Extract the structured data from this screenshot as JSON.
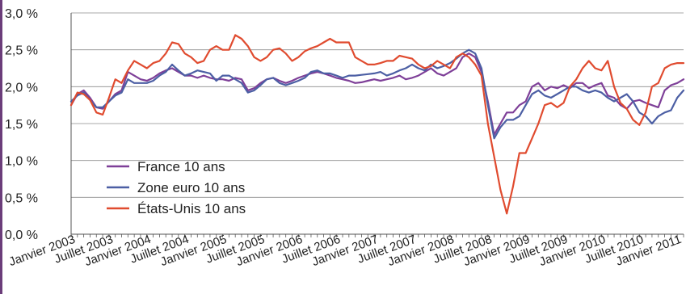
{
  "chart_data": {
    "type": "line",
    "title": "",
    "xlabel": "",
    "ylabel": "",
    "ylim": [
      0,
      3.0
    ],
    "y_ticks": [
      0,
      0.5,
      1.0,
      1.5,
      2.0,
      2.5,
      3.0
    ],
    "y_tick_labels": [
      "0,0 %",
      "0,5 %",
      "1,0 %",
      "1,5 %",
      "2,0 %",
      "2,5 %",
      "3,0 %"
    ],
    "x_tick_labels": [
      "Janvier 2003",
      "Juillet 2003",
      "Janvier 2004",
      "Juillet 2004",
      "Janvier 2005",
      "Juillet 2005",
      "Janvier 2006",
      "Juillet 2006",
      "Janvier 2007",
      "Juillet 2007",
      "Janvier 2008",
      "Juillet 2008",
      "Janvier 2009",
      "Juillet 2009",
      "Janvier 2010",
      "Juillet 2010",
      "Janvier 2011"
    ],
    "x_unit": "month index (0 = janvier 2003)",
    "xlim": [
      0,
      97
    ],
    "grid": "horizontal",
    "legend_position": "bottom-left",
    "series": [
      {
        "name": "France 10 ans",
        "color": "#7e3f98",
        "x": [
          0,
          1,
          2,
          3,
          4,
          5,
          6,
          7,
          8,
          9,
          10,
          11,
          12,
          13,
          14,
          15,
          16,
          17,
          18,
          19,
          20,
          21,
          22,
          23,
          24,
          25,
          26,
          27,
          28,
          29,
          30,
          31,
          32,
          33,
          34,
          35,
          36,
          37,
          38,
          39,
          40,
          41,
          42,
          43,
          44,
          45,
          46,
          47,
          48,
          49,
          50,
          51,
          52,
          53,
          54,
          55,
          56,
          57,
          58,
          59,
          60,
          61,
          62,
          63,
          64,
          65,
          66,
          67,
          68,
          69,
          70,
          71,
          72,
          73,
          74,
          75,
          76,
          77,
          78,
          79,
          80,
          81,
          82,
          83,
          84,
          85,
          86,
          87,
          88,
          89,
          90,
          91,
          92,
          93,
          94,
          95,
          96,
          97
        ],
        "values": [
          1.75,
          1.9,
          1.95,
          1.85,
          1.72,
          1.7,
          1.8,
          1.9,
          1.95,
          2.2,
          2.15,
          2.1,
          2.08,
          2.12,
          2.18,
          2.22,
          2.25,
          2.2,
          2.15,
          2.15,
          2.12,
          2.15,
          2.12,
          2.1,
          2.1,
          2.08,
          2.12,
          2.1,
          1.95,
          1.98,
          2.05,
          2.1,
          2.12,
          2.08,
          2.05,
          2.08,
          2.12,
          2.15,
          2.18,
          2.2,
          2.18,
          2.15,
          2.12,
          2.1,
          2.08,
          2.05,
          2.06,
          2.08,
          2.1,
          2.08,
          2.1,
          2.12,
          2.15,
          2.1,
          2.12,
          2.15,
          2.2,
          2.25,
          2.18,
          2.15,
          2.2,
          2.25,
          2.4,
          2.45,
          2.4,
          2.2,
          1.8,
          1.35,
          1.5,
          1.65,
          1.65,
          1.75,
          1.8,
          2.0,
          2.05,
          1.95,
          2.0,
          1.98,
          2.02,
          1.98,
          2.05,
          2.05,
          1.98,
          2.02,
          2.05,
          1.88,
          1.85,
          1.75,
          1.7,
          1.8,
          1.82,
          1.78,
          1.75,
          1.72,
          1.95,
          2.02,
          2.05,
          2.1
        ]
      },
      {
        "name": "Zone euro 10 ans",
        "color": "#4c5fa4",
        "x": [
          0,
          1,
          2,
          3,
          4,
          5,
          6,
          7,
          8,
          9,
          10,
          11,
          12,
          13,
          14,
          15,
          16,
          17,
          18,
          19,
          20,
          21,
          22,
          23,
          24,
          25,
          26,
          27,
          28,
          29,
          30,
          31,
          32,
          33,
          34,
          35,
          36,
          37,
          38,
          39,
          40,
          41,
          42,
          43,
          44,
          45,
          46,
          47,
          48,
          49,
          50,
          51,
          52,
          53,
          54,
          55,
          56,
          57,
          58,
          59,
          60,
          61,
          62,
          63,
          64,
          65,
          66,
          67,
          68,
          69,
          70,
          71,
          72,
          73,
          74,
          75,
          76,
          77,
          78,
          79,
          80,
          81,
          82,
          83,
          84,
          85,
          86,
          87,
          88,
          89,
          90,
          91,
          92,
          93,
          94,
          95,
          96,
          97
        ],
        "values": [
          1.8,
          1.88,
          1.92,
          1.82,
          1.72,
          1.72,
          1.8,
          1.88,
          1.92,
          2.1,
          2.05,
          2.05,
          2.05,
          2.08,
          2.15,
          2.2,
          2.3,
          2.22,
          2.15,
          2.18,
          2.22,
          2.2,
          2.18,
          2.08,
          2.15,
          2.15,
          2.1,
          2.05,
          1.92,
          1.95,
          2.02,
          2.1,
          2.12,
          2.05,
          2.02,
          2.05,
          2.08,
          2.12,
          2.2,
          2.22,
          2.18,
          2.18,
          2.15,
          2.12,
          2.15,
          2.15,
          2.16,
          2.17,
          2.18,
          2.2,
          2.15,
          2.18,
          2.22,
          2.25,
          2.3,
          2.25,
          2.22,
          2.3,
          2.25,
          2.28,
          2.32,
          2.38,
          2.45,
          2.5,
          2.45,
          2.25,
          1.75,
          1.3,
          1.45,
          1.55,
          1.55,
          1.6,
          1.75,
          1.9,
          1.95,
          1.88,
          1.85,
          1.9,
          1.95,
          2.0,
          2.0,
          1.95,
          1.92,
          1.95,
          1.92,
          1.85,
          1.8,
          1.85,
          1.9,
          1.8,
          1.65,
          1.6,
          1.5,
          1.6,
          1.65,
          1.68,
          1.85,
          1.95
        ]
      },
      {
        "name": "États-Unis 10 ans",
        "color": "#e04b2f",
        "x": [
          0,
          1,
          2,
          3,
          4,
          5,
          6,
          7,
          8,
          9,
          10,
          11,
          12,
          13,
          14,
          15,
          16,
          17,
          18,
          19,
          20,
          21,
          22,
          23,
          24,
          25,
          26,
          27,
          28,
          29,
          30,
          31,
          32,
          33,
          34,
          35,
          36,
          37,
          38,
          39,
          40,
          41,
          42,
          43,
          44,
          45,
          46,
          47,
          48,
          49,
          50,
          51,
          52,
          53,
          54,
          55,
          56,
          57,
          58,
          59,
          60,
          61,
          62,
          63,
          64,
          65,
          66,
          67,
          68,
          69,
          70,
          71,
          72,
          73,
          74,
          75,
          76,
          77,
          78,
          79,
          80,
          81,
          82,
          83,
          84,
          85,
          86,
          87,
          88,
          89,
          90,
          91,
          92,
          93,
          94,
          95,
          96,
          97
        ],
        "values": [
          1.75,
          1.92,
          1.9,
          1.82,
          1.65,
          1.62,
          1.85,
          2.1,
          2.05,
          2.22,
          2.35,
          2.3,
          2.25,
          2.32,
          2.35,
          2.45,
          2.6,
          2.58,
          2.45,
          2.4,
          2.32,
          2.35,
          2.5,
          2.55,
          2.5,
          2.5,
          2.7,
          2.65,
          2.55,
          2.4,
          2.35,
          2.4,
          2.5,
          2.52,
          2.45,
          2.35,
          2.4,
          2.48,
          2.52,
          2.55,
          2.6,
          2.65,
          2.6,
          2.6,
          2.6,
          2.4,
          2.35,
          2.3,
          2.3,
          2.32,
          2.35,
          2.35,
          2.42,
          2.4,
          2.38,
          2.3,
          2.25,
          2.28,
          2.35,
          2.3,
          2.25,
          2.4,
          2.45,
          2.4,
          2.3,
          2.15,
          1.5,
          1.05,
          0.6,
          0.28,
          0.65,
          1.1,
          1.1,
          1.3,
          1.5,
          1.75,
          1.78,
          1.72,
          1.78,
          2.0,
          2.1,
          2.25,
          2.35,
          2.25,
          2.22,
          2.35,
          2.0,
          1.78,
          1.7,
          1.55,
          1.48,
          1.65,
          2.0,
          2.05,
          2.25,
          2.3,
          2.32,
          2.32
        ]
      }
    ]
  }
}
